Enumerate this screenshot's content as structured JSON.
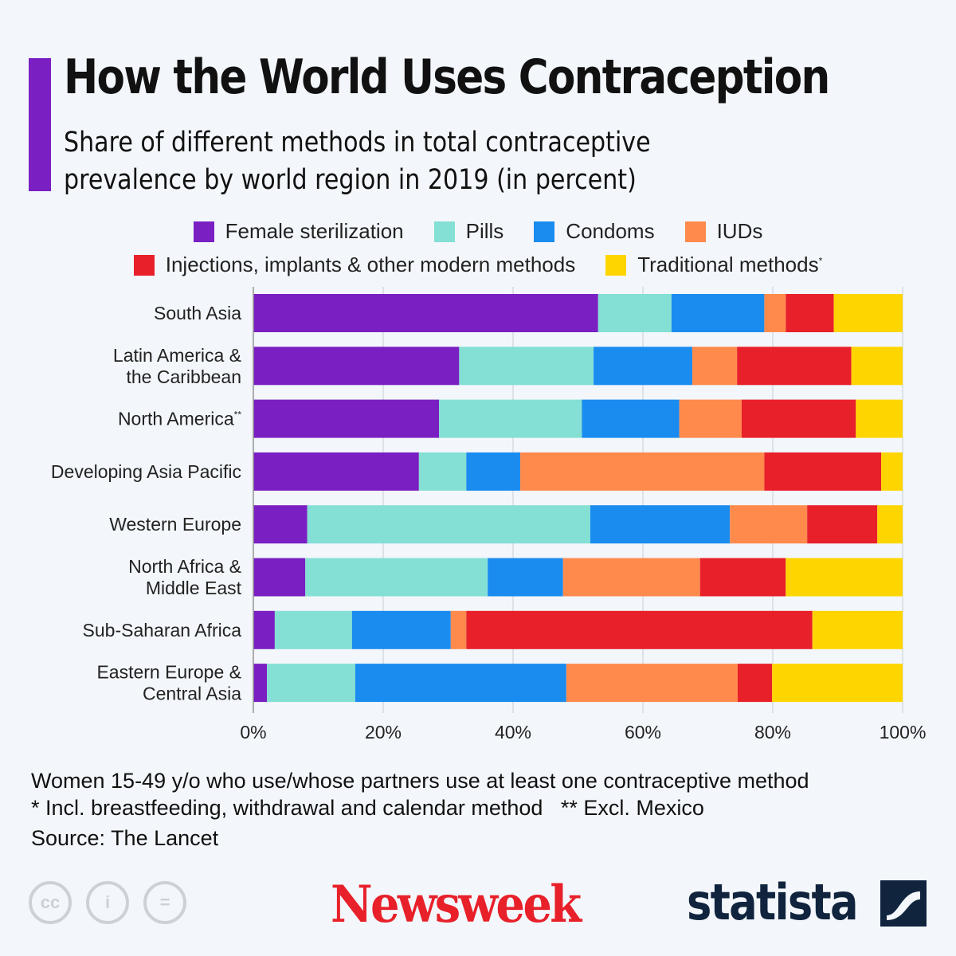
{
  "header": {
    "title": "How the World Uses Contraception",
    "subtitle_lines": [
      "Share of different methods in total contraceptive",
      "prevalence by world region in 2019 (in percent)"
    ]
  },
  "legend": {
    "row1": [
      {
        "label": "Female sterilization",
        "color": "#7a1fc2"
      },
      {
        "label": "Pills",
        "color": "#84dfd5"
      },
      {
        "label": "Condoms",
        "color": "#1a8cf0"
      },
      {
        "label": "IUDs",
        "color": "#ff8a4c"
      }
    ],
    "row2": [
      {
        "label": "Injections, implants & other modern methods",
        "color": "#e8202a"
      },
      {
        "label": "Traditional methods",
        "sup": "*",
        "color": "#ffd500"
      }
    ]
  },
  "chart_data": {
    "type": "bar",
    "orientation": "horizontal",
    "stacked": true,
    "categories": [
      "South Asia",
      "Latin America &\nthe Caribbean",
      "North America**",
      "Developing Asia Pacific",
      "Western Europe",
      "North Africa &\nMiddle East",
      "Sub-Saharan Africa",
      "Eastern Europe &\nCentral Asia"
    ],
    "series": [
      {
        "name": "Female sterilization",
        "color": "#7a1fc2",
        "values": [
          53.1,
          31.7,
          28.6,
          25.5,
          8.3,
          8.0,
          3.3,
          2.1
        ]
      },
      {
        "name": "Pills",
        "color": "#84dfd5",
        "values": [
          11.3,
          20.7,
          22.0,
          7.3,
          43.6,
          28.1,
          11.9,
          13.6
        ]
      },
      {
        "name": "Condoms",
        "color": "#1a8cf0",
        "values": [
          14.3,
          15.2,
          15.0,
          8.3,
          21.5,
          11.6,
          15.2,
          32.5
        ]
      },
      {
        "name": "IUDs",
        "color": "#ff8a4c",
        "values": [
          3.3,
          6.9,
          9.6,
          37.6,
          11.9,
          21.1,
          2.4,
          26.4
        ]
      },
      {
        "name": "Injections, implants & other modern methods",
        "color": "#e8202a",
        "values": [
          7.4,
          17.6,
          17.6,
          18.0,
          10.8,
          13.2,
          53.3,
          5.3
        ]
      },
      {
        "name": "Traditional methods*",
        "color": "#ffd500",
        "values": [
          10.6,
          7.9,
          7.2,
          3.3,
          3.9,
          18.0,
          13.9,
          20.1
        ]
      }
    ],
    "xlim": [
      0,
      100
    ],
    "xticks": [
      "0%",
      "20%",
      "40%",
      "60%",
      "80%",
      "100%"
    ],
    "grid": true,
    "legend_position": "top"
  },
  "footer": {
    "note": "Women 15-49 y/o who use/whose partners use at least one contraceptive method",
    "footnotes": "* Incl. breastfeeding, withdrawal and calendar method   ** Excl. Mexico",
    "source": "Source: The Lancet",
    "logos": {
      "newsweek": "Newsweek",
      "statista": "statista",
      "cc_icons": [
        "cc-icon",
        "attribution-icon",
        "no-derivatives-icon"
      ]
    }
  }
}
